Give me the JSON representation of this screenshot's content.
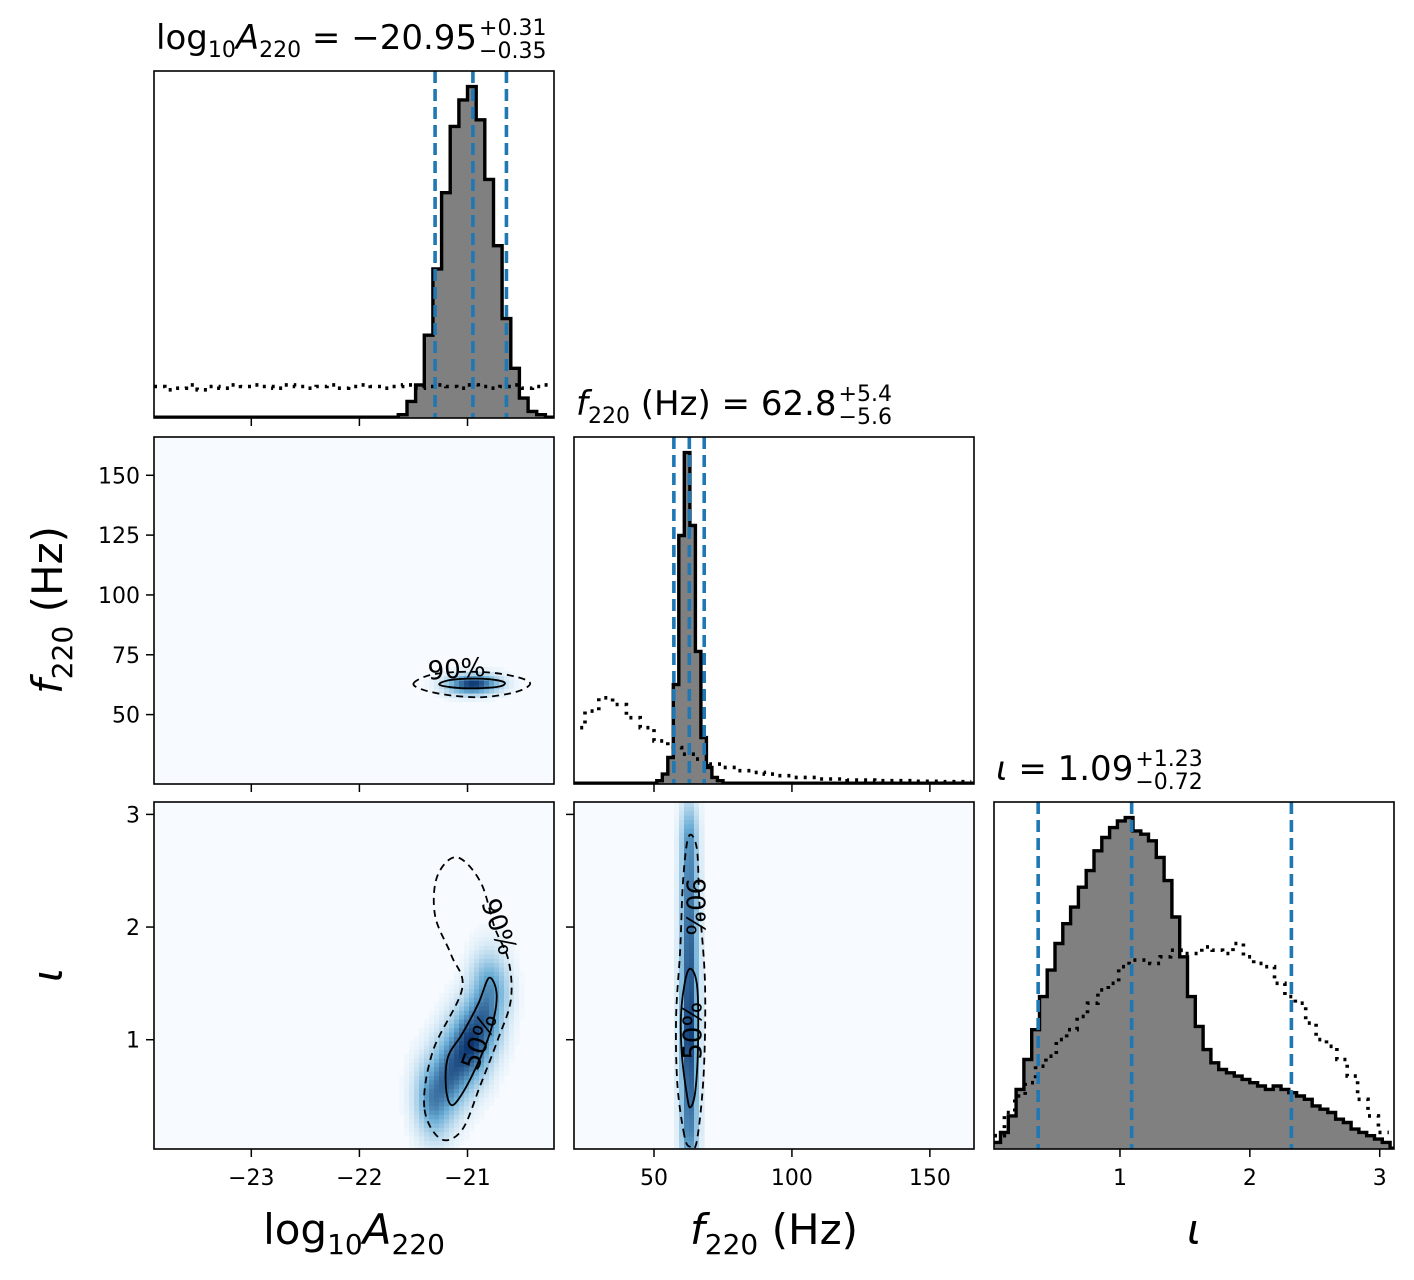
{
  "chart_data": {
    "type": "corner",
    "parameters": [
      {
        "key": "logA",
        "label": {
          "prefix": "log",
          "prefix_sub": "10",
          "symbol": "A",
          "symbol_sub": "220",
          "unit": ""
        },
        "title": {
          "value": "−20.95",
          "plus": "+0.31",
          "minus": "−0.35"
        },
        "range": [
          -23.9,
          -20.2
        ],
        "ticks": [
          -23,
          -22,
          -21
        ],
        "tick_labels": [
          "−23",
          "−22",
          "−21"
        ],
        "quantiles": [
          -21.3,
          -20.95,
          -20.64
        ],
        "posterior_hist": {
          "bin_centers": [
            -21.6,
            -21.52,
            -21.44,
            -21.36,
            -21.28,
            -21.2,
            -21.12,
            -21.04,
            -20.96,
            -20.88,
            -20.8,
            -20.72,
            -20.64,
            -20.56,
            -20.48,
            -20.4,
            -20.32,
            -20.24
          ],
          "heights": [
            0.01,
            0.05,
            0.1,
            0.25,
            0.45,
            0.68,
            0.88,
            0.96,
            1.0,
            0.9,
            0.72,
            0.52,
            0.3,
            0.15,
            0.06,
            0.02,
            0.01,
            0.0
          ]
        },
        "prior_hist": {
          "bin_centers": [
            -23.85,
            -23.75,
            -23.65,
            -23.55,
            -23.45,
            -23.35,
            -23.25,
            -23.15,
            -23.05,
            -22.95,
            -22.85,
            -22.75,
            -22.65,
            -22.55,
            -22.45,
            -22.35,
            -22.25,
            -22.15,
            -22.05,
            -21.95,
            -21.85,
            -21.75,
            -21.65,
            -21.55,
            -21.45,
            -21.35,
            -21.25,
            -21.15,
            -21.05,
            -20.95,
            -20.85,
            -20.75,
            -20.65,
            -20.55,
            -20.45,
            -20.35,
            -20.25
          ],
          "heights": [
            0.095,
            0.085,
            0.09,
            0.1,
            0.085,
            0.095,
            0.09,
            0.1,
            0.095,
            0.1,
            0.095,
            0.09,
            0.1,
            0.095,
            0.09,
            0.095,
            0.1,
            0.09,
            0.095,
            0.1,
            0.095,
            0.09,
            0.095,
            0.1,
            0.09,
            0.095,
            0.1,
            0.095,
            0.09,
            0.1,
            0.095,
            0.09,
            0.095,
            0.1,
            0.09,
            0.095,
            0.1
          ]
        }
      },
      {
        "key": "f220",
        "label": {
          "prefix": "",
          "prefix_sub": "",
          "symbol": "f",
          "symbol_sub": "220",
          "unit": "(Hz)"
        },
        "title": {
          "value": "62.8",
          "plus": "+5.4",
          "minus": "−5.6"
        },
        "range": [
          21,
          166
        ],
        "ticks": [
          50,
          75,
          100,
          125,
          150
        ],
        "tick_labels": [
          "50",
          "75",
          "100",
          "125",
          "150"
        ],
        "x_ticks": [
          50,
          100,
          150
        ],
        "x_tick_labels": [
          "50",
          "100",
          "150"
        ],
        "quantiles": [
          57.2,
          62.8,
          68.2
        ],
        "posterior_hist": {
          "bin_centers": [
            52,
            54,
            56,
            58,
            60,
            62,
            64,
            66,
            68,
            70,
            72,
            74,
            76
          ],
          "heights": [
            0.01,
            0.03,
            0.08,
            0.3,
            0.75,
            1.0,
            0.78,
            0.4,
            0.14,
            0.05,
            0.02,
            0.01,
            0.0
          ]
        },
        "prior_hist": {
          "bin_centers": [
            22.5,
            27.5,
            32.5,
            37.5,
            42.5,
            47.5,
            52.5,
            57.5,
            62.5,
            67.5,
            72.5,
            77.5,
            82.5,
            87.5,
            92.5,
            97.5,
            102.5,
            107.5,
            112.5,
            117.5,
            122.5,
            127.5,
            132.5,
            137.5,
            142.5,
            147.5,
            152.5,
            157.5,
            162.5
          ],
          "heights": [
            0.17,
            0.22,
            0.26,
            0.24,
            0.2,
            0.17,
            0.13,
            0.11,
            0.09,
            0.075,
            0.06,
            0.05,
            0.04,
            0.035,
            0.03,
            0.025,
            0.02,
            0.02,
            0.015,
            0.015,
            0.012,
            0.012,
            0.01,
            0.01,
            0.01,
            0.008,
            0.008,
            0.007,
            0.007
          ]
        }
      },
      {
        "key": "iota",
        "label": {
          "prefix": "",
          "prefix_sub": "",
          "symbol": "ι",
          "symbol_sub": "",
          "unit": ""
        },
        "title": {
          "value": "1.09",
          "plus": "+1.23",
          "minus": "−0.72"
        },
        "range": [
          0.03,
          3.11
        ],
        "ticks": [
          1,
          2,
          3
        ],
        "tick_labels": [
          "1",
          "2",
          "3"
        ],
        "quantiles": [
          0.37,
          1.09,
          2.32
        ],
        "posterior_hist": {
          "bin_centers": [
            0.05,
            0.11,
            0.17,
            0.23,
            0.29,
            0.35,
            0.41,
            0.47,
            0.53,
            0.59,
            0.65,
            0.71,
            0.77,
            0.83,
            0.89,
            0.95,
            1.01,
            1.07,
            1.13,
            1.19,
            1.25,
            1.31,
            1.37,
            1.43,
            1.49,
            1.55,
            1.61,
            1.67,
            1.73,
            1.79,
            1.85,
            1.91,
            1.97,
            2.03,
            2.09,
            2.15,
            2.21,
            2.27,
            2.33,
            2.39,
            2.45,
            2.51,
            2.57,
            2.63,
            2.69,
            2.75,
            2.81,
            2.87,
            2.93,
            2.99,
            3.05
          ],
          "heights": [
            0.02,
            0.05,
            0.1,
            0.18,
            0.27,
            0.36,
            0.46,
            0.54,
            0.62,
            0.68,
            0.73,
            0.79,
            0.84,
            0.9,
            0.94,
            0.97,
            0.99,
            1.0,
            0.96,
            0.95,
            0.93,
            0.88,
            0.81,
            0.7,
            0.58,
            0.46,
            0.37,
            0.3,
            0.26,
            0.24,
            0.23,
            0.22,
            0.21,
            0.2,
            0.19,
            0.18,
            0.19,
            0.18,
            0.17,
            0.16,
            0.15,
            0.13,
            0.12,
            0.11,
            0.09,
            0.08,
            0.06,
            0.05,
            0.04,
            0.03,
            0.02
          ]
        },
        "prior_hist": {
          "bin_centers": [
            0.07,
            0.15,
            0.23,
            0.31,
            0.39,
            0.47,
            0.55,
            0.63,
            0.71,
            0.79,
            0.87,
            0.95,
            1.03,
            1.11,
            1.19,
            1.27,
            1.35,
            1.43,
            1.51,
            1.59,
            1.67,
            1.75,
            1.83,
            1.91,
            1.99,
            2.07,
            2.15,
            2.23,
            2.31,
            2.39,
            2.47,
            2.55,
            2.63,
            2.71,
            2.79,
            2.87,
            2.95,
            3.03
          ],
          "heights": [
            0.04,
            0.11,
            0.16,
            0.2,
            0.25,
            0.28,
            0.33,
            0.36,
            0.4,
            0.44,
            0.48,
            0.5,
            0.55,
            0.57,
            0.57,
            0.56,
            0.58,
            0.6,
            0.59,
            0.59,
            0.61,
            0.6,
            0.59,
            0.62,
            0.58,
            0.56,
            0.55,
            0.5,
            0.46,
            0.44,
            0.38,
            0.33,
            0.31,
            0.27,
            0.22,
            0.15,
            0.1,
            0.05
          ]
        }
      }
    ],
    "density_2d": [
      {
        "x": "logA",
        "y": "f220",
        "mean": [
          -20.95,
          62.8
        ],
        "sigma": [
          0.16,
          2.7
        ],
        "rho": 0.05,
        "contour_50": [
          [
            -21.26,
            62.5
          ],
          [
            -21.18,
            64.3
          ],
          [
            -21.0,
            65.0
          ],
          [
            -20.8,
            64.8
          ],
          [
            -20.66,
            63.5
          ],
          [
            -20.7,
            61.8
          ],
          [
            -20.9,
            61.0
          ],
          [
            -21.1,
            61.2
          ]
        ],
        "contour_90": [
          [
            -21.5,
            63.0
          ],
          [
            -21.35,
            66.5
          ],
          [
            -21.1,
            67.8
          ],
          [
            -20.8,
            67.6
          ],
          [
            -20.55,
            65.8
          ],
          [
            -20.42,
            63.0
          ],
          [
            -20.55,
            59.5
          ],
          [
            -20.85,
            57.3
          ],
          [
            -21.15,
            58.0
          ],
          [
            -21.4,
            60.2
          ]
        ],
        "label_90": {
          "text": "90%",
          "at": [
            -21.1,
            68.5
          ],
          "angle": -4
        }
      },
      {
        "x": "logA",
        "y": "iota",
        "path": [
          [
            -21.3,
            0.5
          ],
          [
            -21.1,
            0.8
          ],
          [
            -20.95,
            1.0
          ],
          [
            -20.85,
            1.2
          ],
          [
            -20.8,
            1.4
          ]
        ],
        "sigma": [
          0.12,
          0.24
        ],
        "contour_50": [
          [
            -21.2,
            0.58
          ],
          [
            -21.18,
            0.85
          ],
          [
            -21.05,
            1.05
          ],
          [
            -20.9,
            1.32
          ],
          [
            -20.8,
            1.55
          ],
          [
            -20.73,
            1.4
          ],
          [
            -20.78,
            1.1
          ],
          [
            -20.9,
            0.8
          ],
          [
            -21.05,
            0.52
          ],
          [
            -21.15,
            0.42
          ]
        ],
        "contour_90": [
          [
            -21.4,
            0.4
          ],
          [
            -21.32,
            0.9
          ],
          [
            -21.05,
            1.45
          ],
          [
            -21.15,
            1.75
          ],
          [
            -21.3,
            2.1
          ],
          [
            -21.28,
            2.45
          ],
          [
            -21.1,
            2.62
          ],
          [
            -20.88,
            2.4
          ],
          [
            -20.75,
            2.0
          ],
          [
            -20.62,
            1.7
          ],
          [
            -20.6,
            1.35
          ],
          [
            -20.72,
            1.0
          ],
          [
            -20.88,
            0.6
          ],
          [
            -21.05,
            0.2
          ],
          [
            -21.25,
            0.12
          ]
        ],
        "label_50": {
          "text": "50%",
          "at": [
            -20.88,
            0.98
          ],
          "angle": -70
        },
        "label_90": {
          "text": "90%",
          "at": [
            -20.72,
            2.0
          ],
          "angle": 70
        }
      },
      {
        "x": "f220",
        "y": "iota",
        "path": [
          [
            62.8,
            0.25
          ],
          [
            62.8,
            1.15
          ],
          [
            62.8,
            2.7
          ]
        ],
        "sigma": [
          2.2,
          0.28
        ],
        "contour_50": [
          [
            62.0,
            0.5
          ],
          [
            60.0,
            0.9
          ],
          [
            60.0,
            1.3
          ],
          [
            62.5,
            1.62
          ],
          [
            65.5,
            1.5
          ],
          [
            66.0,
            1.0
          ],
          [
            65.0,
            0.55
          ],
          [
            63.2,
            0.4
          ]
        ],
        "contour_90": [
          [
            61.0,
            0.15
          ],
          [
            58.5,
            0.6
          ],
          [
            58.0,
            1.2
          ],
          [
            59.5,
            1.8
          ],
          [
            60.5,
            2.4
          ],
          [
            62.5,
            2.8
          ],
          [
            65.5,
            2.7
          ],
          [
            66.5,
            2.2
          ],
          [
            68.5,
            1.5
          ],
          [
            68.0,
            0.7
          ],
          [
            65.5,
            0.1
          ],
          [
            63.0,
            0.05
          ]
        ],
        "label_50": {
          "text": "50%",
          "at": [
            64.5,
            1.08
          ],
          "angle": -90
        },
        "label_90": {
          "text": "90%",
          "at": [
            64.5,
            2.18
          ],
          "angle": 90
        }
      }
    ],
    "colors": {
      "quantile_line": "#1f77b4",
      "hist_fill": "#808080",
      "hist_edge": "#000000",
      "density_low": "#f7fbff",
      "density_high": "#08306b"
    }
  }
}
